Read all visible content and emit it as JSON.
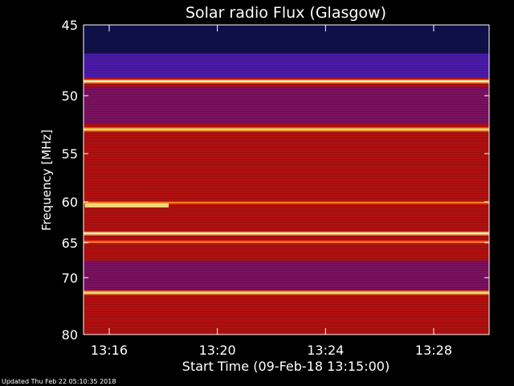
{
  "chart_data": {
    "type": "heatmap",
    "title": "Solar radio Flux (Glasgow)",
    "ylabel": "Frequency [MHz]",
    "xlabel": "Start Time (09-Feb-18 13:15:00)",
    "y_ticks": [
      "45",
      "50",
      "55",
      "60",
      "65",
      "70",
      "80"
    ],
    "y_tick_values": [
      45,
      50,
      55,
      60,
      65,
      70,
      80
    ],
    "x_ticks": [
      "13:16",
      "13:20",
      "13:24",
      "13:28"
    ],
    "x_tick_minutes": [
      1,
      5,
      9,
      13
    ],
    "x_range_minutes": [
      0.05,
      15.05
    ],
    "y_range_mhz": [
      45,
      80
    ],
    "y_scale": "reciprocal",
    "grid": false,
    "colormap": [
      "#000010",
      "#10104a",
      "#2828b0",
      "#4a1aa8",
      "#7a1060",
      "#b01010",
      "#d02010",
      "#ff8a20",
      "#ffe080",
      "#ffffff"
    ],
    "bright_lines_mhz": [
      48.9,
      52.8,
      60.1,
      63.8,
      64.9,
      72.4
    ],
    "bright_line_intensity": [
      1.0,
      0.92,
      0.75,
      0.95,
      0.78,
      0.9
    ],
    "background_regions": [
      {
        "from": 45,
        "to": 46.9,
        "level": "very low",
        "intensity": 0.08
      },
      {
        "from": 46.9,
        "to": 48.6,
        "level": "low",
        "intensity": 0.3
      },
      {
        "from": 49.3,
        "to": 52.3,
        "level": "low-medium",
        "intensity": 0.4
      },
      {
        "from": 53.3,
        "to": 62.3,
        "level": "high",
        "intensity": 0.6
      },
      {
        "from": 62.3,
        "to": 67.5,
        "level": "medium",
        "intensity": 0.5
      },
      {
        "from": 67.5,
        "to": 72.0,
        "level": "medium-low",
        "intensity": 0.46
      },
      {
        "from": 72.8,
        "to": 80,
        "level": "high",
        "intensity": 0.58
      }
    ],
    "burst_events": [
      {
        "minute_start": 0.1,
        "minute_end": 3.2,
        "mhz": 60.4,
        "intensity": 0.85
      }
    ]
  },
  "footer": {
    "updated": "Updated Thu Feb 22 05:10:35 2018"
  }
}
